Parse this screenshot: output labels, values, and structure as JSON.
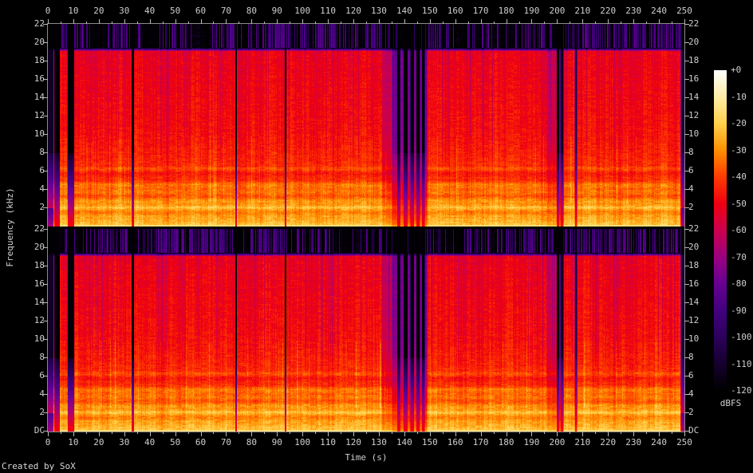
{
  "credit": "Created by SoX",
  "chart_data": {
    "type": "heatmap",
    "title": "",
    "xlabel": "Time (s)",
    "ylabel": "Frequency (kHz)",
    "x_range_s": [
      0,
      250
    ],
    "x_major_tick_step_s": 10,
    "x_minor_tick_step_s": 5,
    "y_range_khz": [
      0,
      22
    ],
    "y_major_tick_step_khz": 2,
    "channels": 2,
    "time_tick_labels": [
      "0",
      "10",
      "20",
      "30",
      "40",
      "50",
      "60",
      "70",
      "80",
      "90",
      "100",
      "110",
      "120",
      "130",
      "140",
      "150",
      "160",
      "170",
      "180",
      "190",
      "200",
      "210",
      "220",
      "230",
      "240",
      "250"
    ],
    "freq_tick_labels": [
      "22",
      "20",
      "18",
      "16",
      "14",
      "12",
      "10",
      "8",
      "6",
      "4",
      "2"
    ],
    "dc_label": "DC",
    "colorbar": {
      "unit_label": "dBFS",
      "tick_labels": [
        "+0",
        "-10",
        "-20",
        "-30",
        "-40",
        "-50",
        "-60",
        "-70",
        "-80",
        "-90",
        "-100",
        "-110",
        "-120"
      ],
      "range_db": [
        0,
        -120
      ],
      "palette_stops": [
        {
          "db": -120,
          "color": "#000000"
        },
        {
          "db": -110,
          "color": "#16002e"
        },
        {
          "db": -100,
          "color": "#2b005c"
        },
        {
          "db": -90,
          "color": "#43007e"
        },
        {
          "db": -80,
          "color": "#660093"
        },
        {
          "db": -70,
          "color": "#9b0080"
        },
        {
          "db": -60,
          "color": "#cb004e"
        },
        {
          "db": -50,
          "color": "#ef0011"
        },
        {
          "db": -40,
          "color": "#ff3b00"
        },
        {
          "db": -30,
          "color": "#ff8f00"
        },
        {
          "db": -20,
          "color": "#ffd04a"
        },
        {
          "db": -10,
          "color": "#ffeda6"
        },
        {
          "db": 0,
          "color": "#ffffff"
        }
      ]
    },
    "spectral_profile_db": [
      {
        "f_khz": 22.0,
        "level": -119
      },
      {
        "f_khz": 19.45,
        "level": -119
      },
      {
        "f_khz": 19.05,
        "level": -52
      },
      {
        "f_khz": 10.0,
        "level": -47.5
      },
      {
        "f_khz": 6.0,
        "level": -42.3
      },
      {
        "f_khz": 4.6,
        "level": -37.4
      },
      {
        "f_khz": 2.4,
        "level": -29.9
      },
      {
        "f_khz": 0.8,
        "level": -26.4
      },
      {
        "f_khz": 0.12,
        "level": -21.6
      },
      {
        "f_khz": 0.0,
        "level": -15
      }
    ],
    "silence_events_s": [
      {
        "start": 0.0,
        "end": 1.9,
        "depth": 0.9,
        "edge": 0.4,
        "soft": true
      },
      {
        "start": 2.55,
        "end": 4.45,
        "depth": 1.0,
        "edge": 0.22,
        "soft": false
      },
      {
        "start": 7.7,
        "end": 10.1,
        "depth": 1.0,
        "edge": 0.22,
        "soft": false
      },
      {
        "start": 32.9,
        "end": 33.6,
        "depth": 1.0,
        "edge": 0.18,
        "soft": false
      },
      {
        "start": 73.5,
        "end": 74.1,
        "depth": 1.0,
        "edge": 0.15,
        "soft": false
      },
      {
        "start": 92.9,
        "end": 93.5,
        "depth": 1.0,
        "edge": 0.15,
        "soft": false
      },
      {
        "start": 131.5,
        "end": 135.2,
        "depth": 0.15,
        "edge": 0.8,
        "soft": false
      },
      {
        "start": 135.2,
        "end": 148.6,
        "depth": 0.38,
        "edge": 0.5,
        "soft": false
      },
      {
        "start": 137.1,
        "end": 138.1,
        "depth": 1.0,
        "edge": 0.2,
        "soft": false
      },
      {
        "start": 139.7,
        "end": 141.0,
        "depth": 1.0,
        "edge": 0.2,
        "soft": false
      },
      {
        "start": 142.3,
        "end": 143.5,
        "depth": 1.0,
        "edge": 0.2,
        "soft": false
      },
      {
        "start": 144.7,
        "end": 145.9,
        "depth": 1.0,
        "edge": 0.2,
        "soft": false
      },
      {
        "start": 146.9,
        "end": 147.8,
        "depth": 1.0,
        "edge": 0.2,
        "soft": false
      },
      {
        "start": 196.0,
        "end": 199.8,
        "depth": 0.15,
        "edge": 0.6,
        "soft": false
      },
      {
        "start": 199.85,
        "end": 200.65,
        "depth": 1.0,
        "edge": 0.15,
        "soft": false
      },
      {
        "start": 200.65,
        "end": 201.4,
        "depth": 0.5,
        "edge": 0.2,
        "soft": false
      },
      {
        "start": 201.45,
        "end": 202.3,
        "depth": 0.95,
        "edge": 0.15,
        "soft": false
      },
      {
        "start": 206.9,
        "end": 207.6,
        "depth": 0.85,
        "edge": 0.2,
        "soft": false
      },
      {
        "start": 248.7,
        "end": 250.2,
        "depth": 0.85,
        "edge": 0.5,
        "soft": true
      }
    ],
    "layout": {
      "grid": false,
      "colorbar_position": "right",
      "background": "#000000",
      "tick_color": "#b8b8b8",
      "frame_color": "#8a8a8a",
      "text_color": "#cfcfcf"
    }
  }
}
